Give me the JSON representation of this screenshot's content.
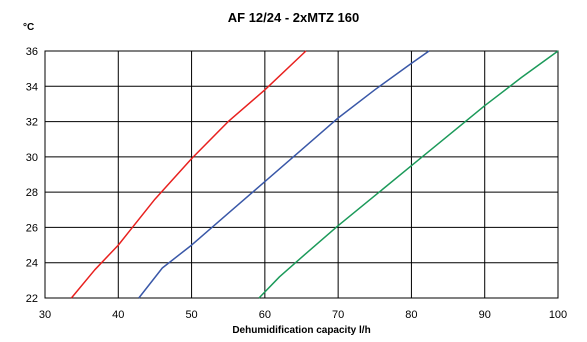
{
  "chart_data": {
    "type": "line",
    "title": "AF 12/24 - 2xMTZ 160",
    "xlabel": "Dehumidification capacity l/h",
    "ylabel": "°C",
    "xlim": [
      30,
      100
    ],
    "ylim": [
      22,
      36
    ],
    "xticks": [
      30,
      40,
      50,
      60,
      70,
      80,
      90,
      100
    ],
    "yticks": [
      22,
      24,
      26,
      28,
      30,
      32,
      34,
      36
    ],
    "grid": true,
    "series": [
      {
        "color": "#e8211f",
        "points": [
          [
            33.6,
            22
          ],
          [
            36.8,
            23.6
          ],
          [
            40,
            25
          ],
          [
            45,
            27.6
          ],
          [
            50,
            29.9
          ],
          [
            55,
            32
          ],
          [
            60,
            33.8
          ],
          [
            65.6,
            36
          ]
        ]
      },
      {
        "color": "#3a58a8",
        "points": [
          [
            42.8,
            22
          ],
          [
            46,
            23.7
          ],
          [
            50,
            25
          ],
          [
            55,
            26.8
          ],
          [
            60,
            28.6
          ],
          [
            65,
            30.4
          ],
          [
            70,
            32.2
          ],
          [
            75,
            33.8
          ],
          [
            80,
            35.3
          ],
          [
            82.4,
            36
          ]
        ]
      },
      {
        "color": "#1c9a5a",
        "points": [
          [
            59.2,
            22
          ],
          [
            62,
            23.2
          ],
          [
            65,
            24.3
          ],
          [
            70,
            26.1
          ],
          [
            75,
            27.8
          ],
          [
            80,
            29.5
          ],
          [
            85,
            31.2
          ],
          [
            90,
            32.9
          ],
          [
            95,
            34.5
          ],
          [
            100,
            36
          ]
        ]
      }
    ]
  }
}
